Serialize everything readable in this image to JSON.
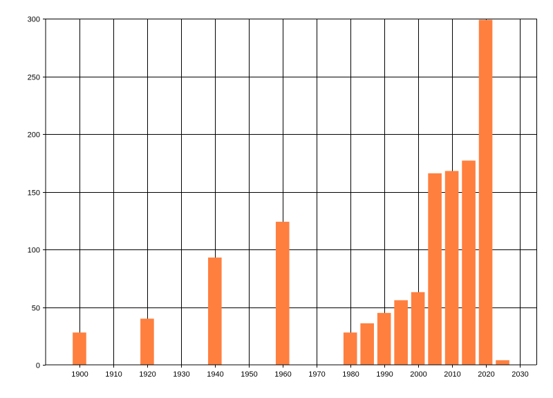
{
  "chart_data": {
    "type": "bar",
    "title": "",
    "xlabel": "",
    "ylabel": "",
    "x": [
      1900,
      1920,
      1940,
      1960,
      1980,
      1985,
      1990,
      1995,
      2000,
      2005,
      2010,
      2015,
      2020,
      2025
    ],
    "values": [
      28,
      40,
      93,
      124,
      28,
      36,
      45,
      56,
      63,
      166,
      168,
      177,
      299,
      4
    ],
    "xlim": [
      1890,
      2035
    ],
    "ylim": [
      0,
      300
    ],
    "x_ticks": [
      1900,
      1910,
      1920,
      1930,
      1940,
      1950,
      1960,
      1970,
      1980,
      1990,
      2000,
      2010,
      2020,
      2030
    ],
    "y_ticks": [
      0,
      50,
      100,
      150,
      200,
      250,
      300
    ],
    "bar_color": "#ff7f3f",
    "grid": true,
    "legend": "none"
  }
}
